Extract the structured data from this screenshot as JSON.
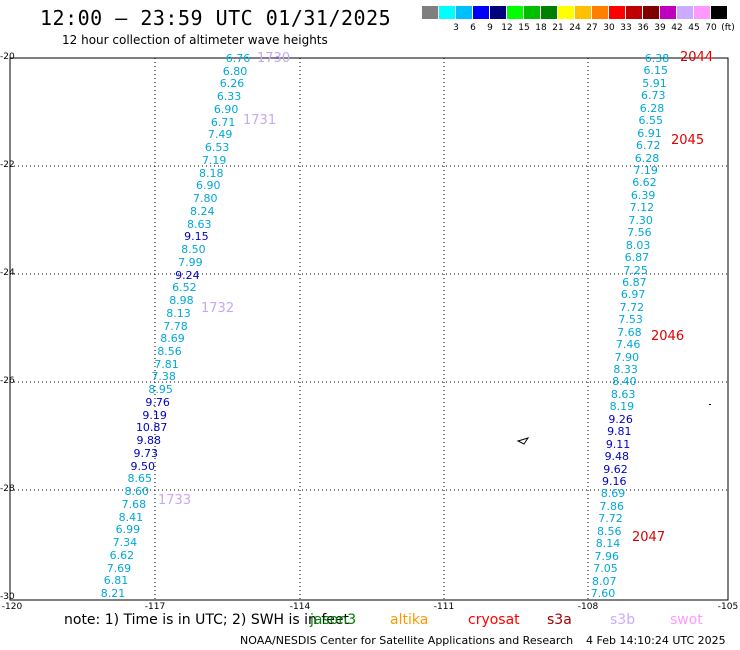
{
  "header": {
    "title": "12:00 — 23:59 UTC 01/31/2025",
    "subtitle": "12 hour collection of altimeter wave heights"
  },
  "legend": {
    "swatches": [
      {
        "color": "#7f7f7f",
        "label": ""
      },
      {
        "color": "#00ffff",
        "label": "3"
      },
      {
        "color": "#00bfff",
        "label": "6"
      },
      {
        "color": "#0000ff",
        "label": "9"
      },
      {
        "color": "#00007f",
        "label": "12"
      },
      {
        "color": "#00ff00",
        "label": "15"
      },
      {
        "color": "#00c000",
        "label": "18"
      },
      {
        "color": "#008000",
        "label": "21"
      },
      {
        "color": "#ffff00",
        "label": "24"
      },
      {
        "color": "#ffc000",
        "label": "27"
      },
      {
        "color": "#ff8000",
        "label": "30"
      },
      {
        "color": "#ff0000",
        "label": "33"
      },
      {
        "color": "#c00000",
        "label": "36"
      },
      {
        "color": "#800000",
        "label": "39"
      },
      {
        "color": "#c000c0",
        "label": "42"
      },
      {
        "color": "#ccaaff",
        "label": "45"
      },
      {
        "color": "#ff99ff",
        "label": "70"
      },
      {
        "color": "#000000",
        "label": "(ft)"
      }
    ]
  },
  "map": {
    "lon_range": [
      -120,
      -105
    ],
    "lat_range": [
      -30,
      -20
    ],
    "lat_labels": [
      "-20",
      "-22",
      "-24",
      "-26",
      "-28",
      "-30"
    ],
    "lon_labels": [
      "-120",
      "-117",
      "-114",
      "-111",
      "-108",
      "-105"
    ],
    "grid": true
  },
  "tracks": [
    {
      "name": "left-track",
      "x_start": 238,
      "x_end": 113,
      "values": [
        "6.76",
        "6.80",
        "6.26",
        "6.33",
        "6.90",
        "6.71",
        "7.49",
        "6.53",
        "7.19",
        "8.18",
        "6.90",
        "7.80",
        "8.24",
        "8.63",
        "9.15",
        "8.50",
        "7.99",
        "9.24",
        "6.52",
        "8.98",
        "8.13",
        "7.78",
        "8.69",
        "8.56",
        "7.81",
        "7.38",
        "8.95",
        "9.76",
        "9.19",
        "10.87",
        "9.88",
        "9.73",
        "9.50",
        "8.65",
        "8.60",
        "7.68",
        "8.41",
        "6.99",
        "7.34",
        "6.62",
        "7.69",
        "6.81",
        "8.21"
      ]
    },
    {
      "name": "right-track",
      "x_start": 657,
      "x_end": 603,
      "values": [
        "6.38",
        "6.15",
        "5.91",
        "6.73",
        "6.28",
        "6.55",
        "6.91",
        "6.72",
        "6.28",
        "7.19",
        "6.62",
        "6.39",
        "7.12",
        "7.30",
        "7.56",
        "8.03",
        "6.87",
        "7.25",
        "6.87",
        "6.97",
        "7.72",
        "7.53",
        "7.68",
        "7.46",
        "7.90",
        "8.33",
        "8.40",
        "8.63",
        "8.19",
        "9.26",
        "9.81",
        "9.11",
        "9.48",
        "9.62",
        "9.16",
        "8.69",
        "7.86",
        "7.72",
        "8.56",
        "8.14",
        "7.96",
        "7.05",
        "8.07",
        "7.60"
      ]
    }
  ],
  "annotations": [
    {
      "text": "1730",
      "color": "#c8a8f0"
    },
    {
      "text": "1731",
      "color": "#c8a8f0"
    },
    {
      "text": "1732",
      "color": "#c8a8f0"
    },
    {
      "text": "1733",
      "color": "#c8a8f0"
    },
    {
      "text": "2044",
      "color": "#e00000"
    },
    {
      "text": "2045",
      "color": "#e00000"
    },
    {
      "text": "2046",
      "color": "#e00000"
    },
    {
      "text": "2047",
      "color": "#e00000"
    }
  ],
  "footer": {
    "note": "note: 1) Time is in UTC; 2) SWH is in feet",
    "satellites": [
      {
        "name": "jason3",
        "color": "#008000"
      },
      {
        "name": "altika",
        "color": "#ff9900"
      },
      {
        "name": "cryosat",
        "color": "#ff0000"
      },
      {
        "name": "s3a",
        "color": "#a00000"
      },
      {
        "name": "s3b",
        "color": "#ccaaff"
      },
      {
        "name": "swot",
        "color": "#ff99ff"
      }
    ],
    "credit": "NOAA/NESDIS Center for Satellite Applications and Research",
    "timestamp": "4 Feb 14:10:24 UTC 2025"
  }
}
